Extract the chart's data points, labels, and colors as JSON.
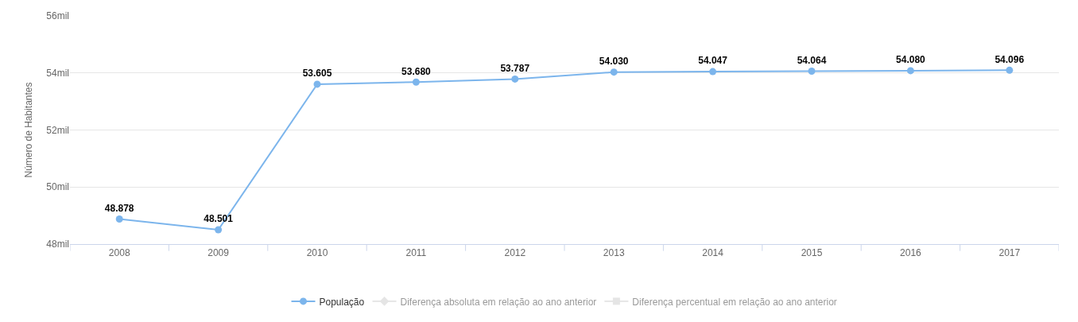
{
  "chart_data": {
    "type": "line",
    "ylabel": "Número de Habitantes",
    "categories": [
      "2008",
      "2009",
      "2010",
      "2011",
      "2012",
      "2013",
      "2014",
      "2015",
      "2016",
      "2017"
    ],
    "series": [
      {
        "name": "População",
        "color": "#7cb5ec",
        "marker": "circle",
        "values": [
          48.878,
          48.501,
          53.605,
          53.68,
          53.787,
          54.03,
          54.047,
          54.064,
          54.08,
          54.096
        ],
        "value_labels": [
          "48.878",
          "48.501",
          "53.605",
          "53.680",
          "53.787",
          "54.030",
          "54.047",
          "54.064",
          "54.080",
          "54.096"
        ]
      },
      {
        "name": "Diferença absoluta em relação ao ano anterior",
        "color": "#cccccc",
        "marker": "diamond",
        "values": [
          null,
          null,
          null,
          null,
          null,
          null,
          null,
          null,
          null,
          null
        ]
      },
      {
        "name": "Diferença percentual em relação ao ano anterior",
        "color": "#cccccc",
        "marker": "square",
        "values": [
          null,
          null,
          null,
          null,
          null,
          null,
          null,
          null,
          null,
          null
        ]
      }
    ],
    "ylim": [
      48,
      56
    ],
    "yticks": [
      {
        "value": 48,
        "label": "48mil"
      },
      {
        "value": 50,
        "label": "50mil"
      },
      {
        "value": 52,
        "label": "52mil"
      },
      {
        "value": 54,
        "label": "54mil"
      },
      {
        "value": 56,
        "label": "56mil"
      }
    ],
    "grid": "y",
    "legend": "bottom",
    "line_style": "solid"
  }
}
